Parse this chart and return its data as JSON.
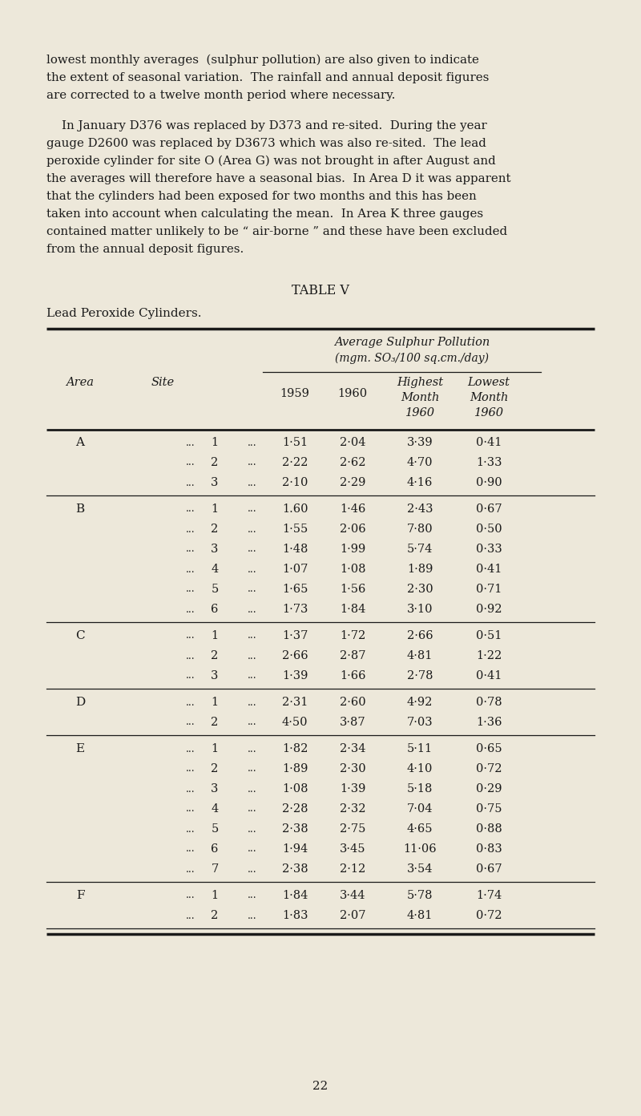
{
  "bg_color": "#ede8da",
  "text_color": "#1a1a1a",
  "page_width": 8.0,
  "page_height": 13.92,
  "intro_text": [
    "lowest monthly averages  (sulphur pollution) are also given to indicate",
    "the extent of seasonal variation.  The rainfall and annual deposit figures",
    "are corrected to a twelve month period where necessary."
  ],
  "para2_text": [
    "    In January D376 was replaced by D373 and re-sited.  During the year",
    "gauge D2600 was replaced by D3673 which was also re-sited.  The lead",
    "peroxide cylinder for site O (Area G) was not brought in after August and",
    "the averages will therefore have a seasonal bias.  In Area D it was apparent",
    "that the cylinders had been exposed for two months and this has been",
    "taken into account when calculating the mean.  In Area K three gauges",
    "contained matter unlikely to be “ air-borne ” and these have been excluded",
    "from the annual deposit figures."
  ],
  "table_title": "TABLE V",
  "table_subtitle": "Lead Peroxide Cylinders.",
  "col_header_main": "Average Sulphur Pollution",
  "col_header_units": "(mgm. SO₃/100 sq.cm./day)",
  "rows": [
    {
      "area": "A",
      "site": "1",
      "v1959": "1·51",
      "v1960": "2·04",
      "highest": "3·39",
      "lowest": "0·41"
    },
    {
      "area": "",
      "site": "2",
      "v1959": "2·22",
      "v1960": "2·62",
      "highest": "4·70",
      "lowest": "1·33"
    },
    {
      "area": "",
      "site": "3",
      "v1959": "2·10",
      "v1960": "2·29",
      "highest": "4·16",
      "lowest": "0·90"
    },
    {
      "area": "B",
      "site": "1",
      "v1959": "1.60",
      "v1960": "1·46",
      "highest": "2·43",
      "lowest": "0·67"
    },
    {
      "area": "",
      "site": "2",
      "v1959": "1·55",
      "v1960": "2·06",
      "highest": "7·80",
      "lowest": "0·50"
    },
    {
      "area": "",
      "site": "3",
      "v1959": "1·48",
      "v1960": "1·99",
      "highest": "5·74",
      "lowest": "0·33"
    },
    {
      "area": "",
      "site": "4",
      "v1959": "1·07",
      "v1960": "1·08",
      "highest": "1·89",
      "lowest": "0·41"
    },
    {
      "area": "",
      "site": "5",
      "v1959": "1·65",
      "v1960": "1·56",
      "highest": "2·30",
      "lowest": "0·71"
    },
    {
      "area": "",
      "site": "6",
      "v1959": "1·73",
      "v1960": "1·84",
      "highest": "3·10",
      "lowest": "0·92"
    },
    {
      "area": "C",
      "site": "1",
      "v1959": "1·37",
      "v1960": "1·72",
      "highest": "2·66",
      "lowest": "0·51"
    },
    {
      "area": "",
      "site": "2",
      "v1959": "2·66",
      "v1960": "2·87",
      "highest": "4·81",
      "lowest": "1·22"
    },
    {
      "area": "",
      "site": "3",
      "v1959": "1·39",
      "v1960": "1·66",
      "highest": "2·78",
      "lowest": "0·41"
    },
    {
      "area": "D",
      "site": "1",
      "v1959": "2·31",
      "v1960": "2·60",
      "highest": "4·92",
      "lowest": "0·78"
    },
    {
      "area": "",
      "site": "2",
      "v1959": "4·50",
      "v1960": "3·87",
      "highest": "7·03",
      "lowest": "1·36"
    },
    {
      "area": "E",
      "site": "1",
      "v1959": "1·82",
      "v1960": "2·34",
      "highest": "5·11",
      "lowest": "0·65"
    },
    {
      "area": "",
      "site": "2",
      "v1959": "1·89",
      "v1960": "2·30",
      "highest": "4·10",
      "lowest": "0·72"
    },
    {
      "area": "",
      "site": "3",
      "v1959": "1·08",
      "v1960": "1·39",
      "highest": "5·18",
      "lowest": "0·29"
    },
    {
      "area": "",
      "site": "4",
      "v1959": "2·28",
      "v1960": "2·32",
      "highest": "7·04",
      "lowest": "0·75"
    },
    {
      "area": "",
      "site": "5",
      "v1959": "2·38",
      "v1960": "2·75",
      "highest": "4·65",
      "lowest": "0·88"
    },
    {
      "area": "",
      "site": "6",
      "v1959": "1·94",
      "v1960": "3·45",
      "highest": "11·06",
      "lowest": "0·83"
    },
    {
      "area": "",
      "site": "7",
      "v1959": "2·38",
      "v1960": "2·12",
      "highest": "3·54",
      "lowest": "0·67"
    },
    {
      "area": "F",
      "site": "1",
      "v1959": "1·84",
      "v1960": "3·44",
      "highest": "5·78",
      "lowest": "1·74"
    },
    {
      "area": "",
      "site": "2",
      "v1959": "1·83",
      "v1960": "2·07",
      "highest": "4·81",
      "lowest": "0·72"
    }
  ],
  "group_separators_after": [
    2,
    8,
    11,
    13,
    20,
    22
  ],
  "page_number": "22"
}
